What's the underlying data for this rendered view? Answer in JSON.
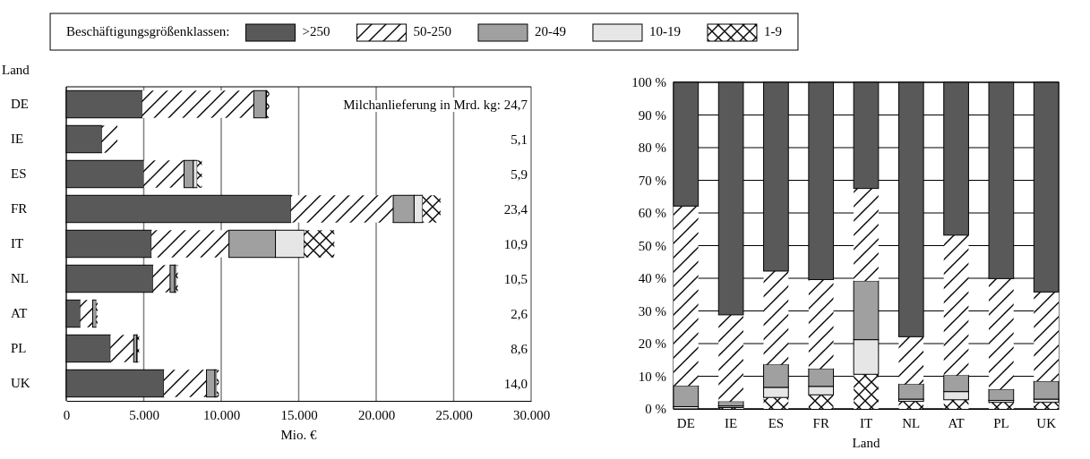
{
  "chart_data": [
    {
      "type": "bar",
      "orientation": "horizontal",
      "stacked": true,
      "ylabel": "Land",
      "xlabel": "Mio. €",
      "legend": "top",
      "legend_title": "Beschäftigungsgrößenklassen:",
      "categories": [
        "DE",
        "IE",
        "ES",
        "FR",
        "IT",
        "NL",
        "AT",
        "PL",
        "UK"
      ],
      "series": [
        {
          "name": ">250",
          "color": "#595959",
          "values": [
            4900,
            2300,
            5000,
            14500,
            5500,
            5600,
            900,
            2850,
            6300
          ]
        },
        {
          "name": "50-250",
          "color": "#ffffff",
          "values": [
            7200,
            1000,
            2600,
            6600,
            5000,
            1100,
            800,
            1500,
            2750
          ]
        },
        {
          "name": "20-49",
          "color": "#a0a0a0",
          "values": [
            800,
            null,
            600,
            1350,
            3000,
            300,
            230,
            200,
            550
          ]
        },
        {
          "name": "10-19",
          "color": "#e6e6e6",
          "values": [
            50,
            null,
            250,
            550,
            1850,
            80,
            null,
            50,
            120
          ]
        },
        {
          "name": "1-9",
          "color": "#ffffff",
          "values": [
            150,
            null,
            300,
            1150,
            1950,
            120,
            90,
            100,
            130
          ]
        }
      ],
      "xlim": [
        0,
        30000
      ],
      "xticks": [
        0,
        {
          "value": 5000,
          "label": "5.000"
        },
        {
          "value": 10000,
          "label": "10.000"
        },
        {
          "value": 15000,
          "label": "15.000"
        },
        {
          "value": 20000,
          "label": "20.000"
        },
        {
          "value": 25000,
          "label": "25.000"
        },
        {
          "value": 30000,
          "label": "30.000"
        }
      ],
      "grid": "x",
      "annotations": [
        "Milchanlieferung in Mrd. kg: 24,7",
        "5,1",
        "5,9",
        "23,4",
        "10,9",
        "10,5",
        "2,6",
        "8,6",
        "14,0"
      ]
    },
    {
      "type": "bar",
      "stacked": true,
      "xlabel": "Land",
      "categories": [
        "DE",
        "IE",
        "ES",
        "FR",
        "IT",
        "NL",
        "AT",
        "PL",
        "UK"
      ],
      "series": [
        {
          "name": "1-9",
          "color": "#ffffff",
          "values": [
            null,
            0.4,
            3.5,
            4.3,
            10.6,
            2.3,
            2.8,
            2.0,
            2.0
          ]
        },
        {
          "name": "10-19",
          "color": "#e6e6e6",
          "values": [
            0.7,
            0.5,
            3.1,
            2.6,
            10.6,
            0.7,
            2.5,
            0.6,
            1.0
          ]
        },
        {
          "name": "20-49",
          "color": "#a0a0a0",
          "values": [
            6.4,
            1.4,
            7.0,
            5.4,
            18.0,
            4.6,
            5.0,
            3.4,
            5.5
          ]
        },
        {
          "name": "50-250",
          "color": "#ffffff",
          "values": [
            55.0,
            26.5,
            28.6,
            27.3,
            28.3,
            14.5,
            42.9,
            33.9,
            27.3
          ]
        },
        {
          "name": ">250",
          "color": "#595959",
          "values": [
            37.9,
            71.2,
            57.8,
            60.4,
            32.5,
            77.9,
            46.8,
            60.1,
            64.2
          ]
        }
      ],
      "ylim": [
        0,
        100
      ],
      "yticks": [
        {
          "value": 0,
          "label": "0 %"
        },
        {
          "value": 10,
          "label": "10 %"
        },
        {
          "value": 20,
          "label": "20 %"
        },
        {
          "value": 30,
          "label": "30 %"
        },
        {
          "value": 40,
          "label": "40 %"
        },
        {
          "value": 50,
          "label": "50 %"
        },
        {
          "value": 60,
          "label": "60 %"
        },
        {
          "value": 70,
          "label": "70 %"
        },
        {
          "value": 80,
          "label": "80 %"
        },
        {
          "value": 90,
          "label": "90 %"
        },
        {
          "value": 100,
          "label": "100 %"
        }
      ],
      "grid": "y"
    }
  ]
}
